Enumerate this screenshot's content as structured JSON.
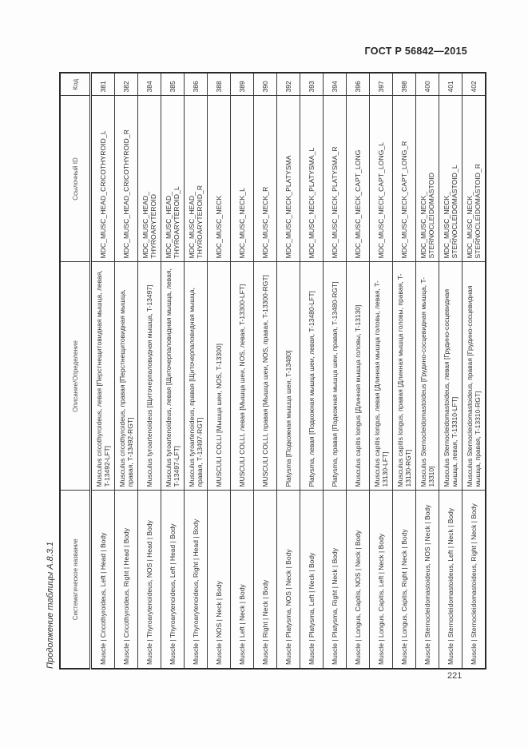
{
  "page": {
    "standard_header": "ГОСТ Р 56842—2015",
    "table_caption": "Продолжение таблицы А.8.3.1",
    "page_number": "221"
  },
  "table": {
    "columns": [
      "Систематическое название",
      "Описание/Определение",
      "Ссылочный ID",
      "Код"
    ],
    "rows": [
      {
        "systematic_name": "Muscle | Cricothyroideus, Left | Head | Body",
        "description": "Musculus cricothyroideus, левая [Перстнещитовидная мышца, левая, T-13492-LFT]",
        "ref_id": "MDC_MUSC_HEAD_CRICOTHYROID_L",
        "code": "381"
      },
      {
        "systematic_name": "Muscle | Cricothyroideus, Right | Head | Body",
        "description": "Musculus cricothyroideus, правая [Перстнещитовидная мышца, правая, T-13492-RGT]",
        "ref_id": "MDC_MUSC_HEAD_CRICOTHYROID_R",
        "code": "382"
      },
      {
        "systematic_name": "Muscle | Thyroarytenoideus, NOS | Head | Body",
        "description": "Musculus tyroartenoideus [Щиточерпаловидная мышца, T-13497]",
        "ref_id": "MDC_MUSC_HEAD_\nTHYROARYTEROID",
        "code": "384"
      },
      {
        "systematic_name": "Muscle | Thyroarytenoideus, Left | Head | Body",
        "description": "Musculus tyroartenoideus, левая [Щиточерпаловидная мышца, левая, T-13497-LFT]",
        "ref_id": "MDC_MUSC_HEAD_\nTHYROARYTEROID_L",
        "code": "385"
      },
      {
        "systematic_name": "Muscle | Thyroarytenoideus, Right | Head | Body",
        "description": "Musculus tyroartenoideus, правая [Щиточерпаловидная мышца, правая, T-13497-RGT]",
        "ref_id": "MDC_MUSC_HEAD_\nTHYROARYTEROID_R",
        "code": "386"
      },
      {
        "systematic_name": "Muscle | NOS | Neck | Body",
        "description": "MUSCULI COLLI [Мышца шеи, NOS, T-13300]",
        "ref_id": "MDC_MUSC_NECK",
        "code": "388"
      },
      {
        "systematic_name": "Muscle | Left | Neck | Body",
        "description": "MUSCULI COLLI, левая [Мышца шеи, NOS, левая, T-13300-LFT]",
        "ref_id": "MDC_MUSC_NECK_L",
        "code": "389"
      },
      {
        "systematic_name": "Muscle | Right | Neck | Body",
        "description": "MUSCULI COLLI, правая [Мышца шеи, NOS, правая, T-13300-RGT]",
        "ref_id": "MDC_MUSC_NECK_R",
        "code": "390"
      },
      {
        "systematic_name": "Muscle | Platysma, NOS | Neck | Body",
        "description": "Platysma [Подкожная мышца шеи, T-13480]",
        "ref_id": "MDC_MUSC_NECK_PLATYSMA",
        "code": "392"
      },
      {
        "systematic_name": "Muscle | Platysma, Left | Neck | Body",
        "description": "Platysma, левая [Подкожная мышца шеи, левая, T-13480-LFT]",
        "ref_id": "MDC_MUSC_NECK_PLATYSMA_L",
        "code": "393"
      },
      {
        "systematic_name": "Muscle | Platysma, Right | Neck | Body",
        "description": "Platysma, правая [Подкожная мышца шеи, правая, T-13480-RGT]",
        "ref_id": "MDC_MUSC_NECK_PLATYSMA_R",
        "code": "394"
      },
      {
        "systematic_name": "Muscle | Longus, Capitis, NOS | Neck | Body",
        "description": "Musculus capitis longus [Длинная мышца головы, T-13130]",
        "ref_id": "MDC_MUSC_NECK_CAPT_LONG",
        "code": "396"
      },
      {
        "systematic_name": "Muscle | Longus, Capitis, Left | Neck | Body",
        "description": "Musculus capitis longus, левая [Длинная мышца головы, левая, T-13130-LFT]",
        "ref_id": "MDC_MUSC_NECK_CAPT_LONG_L",
        "code": "397"
      },
      {
        "systematic_name": "Muscle | Longus, Capitis, Right | Neck | Body",
        "description": "Musculus capitis longus, правая [Длинная мышца головы, правая, T-13130-RGT]",
        "ref_id": "MDC_MUSC_NECK_CAPT_LONG_R",
        "code": "398"
      },
      {
        "systematic_name": "Muscle | Sternocleidomastoideus, NOS | Neck | Body",
        "description": "Musculus Sternocleidomastoideus [Грудино-сосцевидная мышца, T-13310]",
        "ref_id": "MDC_MUSC_NECK_\nSTERNOCLEIDOMASTOID",
        "code": "400"
      },
      {
        "systematic_name": "Muscle | Sternocleidomastoideus, Left | Neck | Body",
        "description": "Musculus Sternocleidomastoideus, левая [Грудино-сосцевидная мышца, левая, T-13310-LFT]",
        "ref_id": "MDC_MUSC_NECK_\nSTERNOCLEIDOMASTOID_L",
        "code": "401"
      },
      {
        "systematic_name": "Muscle | Sternocleidomastoideus, Right | Neck | Body",
        "description": "Musculus Sternocleidomastoideus, правая [Грудино-сосцевидная мышца, правая, T-13310-RGT]",
        "ref_id": "MDC_MUSC_NECK_\nSTERNOCLEIDOMASTOID_R",
        "code": "402"
      }
    ]
  }
}
